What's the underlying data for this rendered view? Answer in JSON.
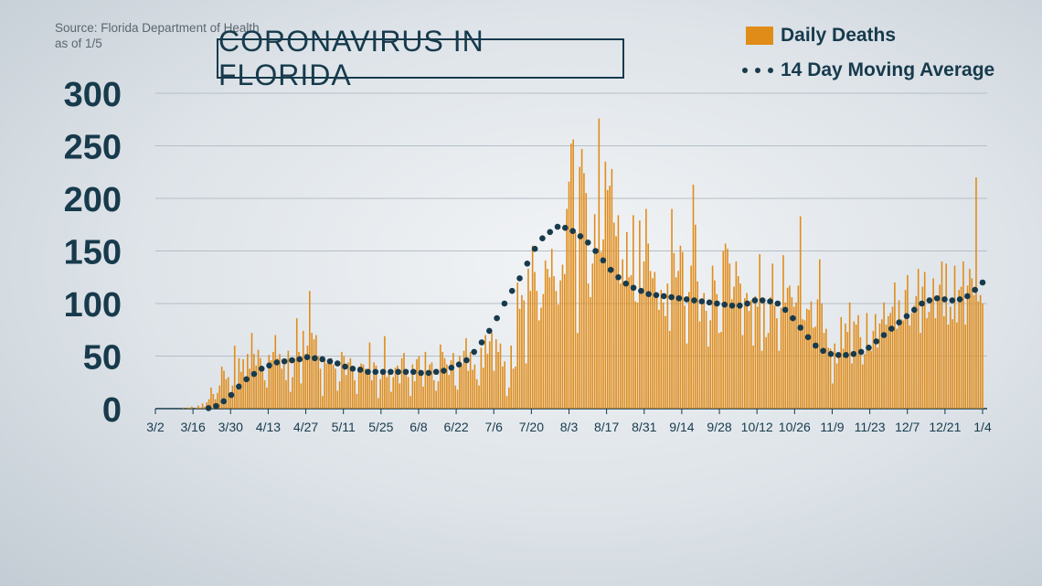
{
  "source": {
    "line1": "Source: Florida Department of Health",
    "line2": "as of 1/5"
  },
  "title": "CORONAVIRUS IN FLORIDA",
  "legend": {
    "bars": "Daily Deaths",
    "line": "14 Day Moving Average"
  },
  "colors": {
    "bars": "#e08c19",
    "line": "#173a4c",
    "grid": "#b5bec6",
    "text": "#173a4c"
  },
  "chart_data": {
    "type": "bar",
    "start_date": "3/2",
    "grid": true,
    "ylim": [
      0,
      300
    ],
    "yticks": [
      0,
      50,
      100,
      150,
      200,
      250,
      300
    ],
    "xticks": [
      {
        "label": "3/2",
        "day": 0
      },
      {
        "label": "3/16",
        "day": 14
      },
      {
        "label": "3/30",
        "day": 28
      },
      {
        "label": "4/13",
        "day": 42
      },
      {
        "label": "4/27",
        "day": 56
      },
      {
        "label": "5/11",
        "day": 70
      },
      {
        "label": "5/25",
        "day": 84
      },
      {
        "label": "6/8",
        "day": 98
      },
      {
        "label": "6/22",
        "day": 112
      },
      {
        "label": "7/6",
        "day": 126
      },
      {
        "label": "7/20",
        "day": 140
      },
      {
        "label": "8/3",
        "day": 154
      },
      {
        "label": "8/17",
        "day": 168
      },
      {
        "label": "8/31",
        "day": 182
      },
      {
        "label": "9/14",
        "day": 196
      },
      {
        "label": "9/28",
        "day": 210
      },
      {
        "label": "10/12",
        "day": 224
      },
      {
        "label": "10/26",
        "day": 238
      },
      {
        "label": "11/9",
        "day": 252
      },
      {
        "label": "11/23",
        "day": 266
      },
      {
        "label": "12/7",
        "day": 280
      },
      {
        "label": "12/21",
        "day": 294
      },
      {
        "label": "1/4",
        "day": 308
      }
    ],
    "series": [
      {
        "name": "Daily Deaths",
        "values": [
          0,
          0,
          0,
          0,
          0,
          0,
          0,
          0,
          0,
          0,
          0,
          0,
          0,
          1,
          0,
          1,
          1,
          2,
          0,
          1,
          3,
          1,
          5,
          2,
          6,
          9,
          20,
          14,
          9,
          15,
          22,
          40,
          36,
          28,
          30,
          14,
          22,
          60,
          19,
          48,
          35,
          47,
          28,
          52,
          38,
          72,
          52,
          41,
          56,
          48,
          35,
          27,
          20,
          51,
          46,
          54,
          70,
          48,
          52,
          38,
          42,
          27,
          55,
          16,
          30,
          48,
          86,
          54,
          24,
          74,
          52,
          60,
          112,
          72,
          66,
          70,
          50,
          38,
          12,
          48,
          43,
          47,
          48,
          42,
          38,
          17,
          26,
          54,
          50,
          32,
          44,
          48,
          35,
          27,
          14,
          40,
          43,
          42,
          38,
          36,
          63,
          27,
          44,
          41,
          10,
          28,
          35,
          69,
          30,
          34,
          16,
          30,
          39,
          41,
          24,
          48,
          53,
          34,
          30,
          12,
          42,
          26,
          47,
          50,
          33,
          21,
          54,
          36,
          42,
          44,
          27,
          17,
          26,
          61,
          54,
          48,
          42,
          32,
          46,
          53,
          22,
          18,
          50,
          41,
          55,
          67,
          36,
          54,
          37,
          42,
          28,
          22,
          58,
          39,
          70,
          52,
          64,
          72,
          36,
          66,
          54,
          62,
          40,
          45,
          12,
          20,
          60,
          38,
          40,
          120,
          95,
          108,
          103,
          43,
          133,
          112,
          155,
          130,
          112,
          84,
          96,
          109,
          141,
          133,
          125,
          152,
          126,
          112,
          99,
          122,
          137,
          128,
          190,
          216,
          252,
          256,
          168,
          72,
          230,
          247,
          224,
          205,
          119,
          106,
          138,
          185,
          152,
          276,
          149,
          161,
          235,
          208,
          212,
          228,
          177,
          164,
          184,
          119,
          142,
          118,
          168,
          125,
          127,
          184,
          102,
          101,
          179,
          111,
          140,
          190,
          157,
          131,
          124,
          130,
          108,
          94,
          113,
          101,
          88,
          119,
          74,
          190,
          148,
          125,
          131,
          155,
          149,
          98,
          62,
          111,
          136,
          213,
          175,
          121,
          83,
          99,
          110,
          93,
          59,
          84,
          136,
          122,
          109,
          72,
          73,
          150,
          157,
          152,
          138,
          104,
          116,
          140,
          126,
          119,
          70,
          105,
          110,
          93,
          103,
          60,
          107,
          97,
          147,
          55,
          105,
          68,
          72,
          106,
          138,
          98,
          86,
          55,
          96,
          146,
          101,
          115,
          117,
          106,
          97,
          101,
          117,
          183,
          85,
          84,
          95,
          94,
          102,
          77,
          78,
          104,
          142,
          100,
          72,
          76,
          58,
          57,
          24,
          62,
          43,
          52,
          87,
          57,
          81,
          73,
          101,
          43,
          83,
          80,
          89,
          68,
          42,
          52,
          91,
          60,
          55,
          74,
          90,
          58,
          81,
          85,
          101,
          80,
          88,
          91,
          97,
          120,
          76,
          103,
          85,
          84,
          113,
          127,
          79,
          91,
          98,
          107,
          133,
          72,
          116,
          130,
          86,
          92,
          103,
          124,
          86,
          104,
          118,
          140,
          88,
          138,
          80,
          97,
          85,
          136,
          82,
          113,
          116,
          140,
          80,
          117,
          133,
          124,
          108,
          220,
          102,
          108,
          100
        ]
      },
      {
        "name": "14 Day Moving Average",
        "values": [
          0,
          0,
          0,
          0,
          0,
          0,
          0,
          0,
          0,
          0,
          0,
          0,
          0,
          0,
          0,
          0,
          0,
          0,
          0,
          0,
          0,
          0.5,
          1,
          1.5,
          2.5,
          3.5,
          5,
          7,
          9,
          11,
          13,
          16,
          19,
          21,
          23,
          26,
          28,
          30,
          32,
          33,
          35,
          37,
          38,
          39,
          40,
          41,
          42,
          43,
          44,
          44,
          45,
          45,
          46,
          46,
          46,
          47,
          47,
          47,
          48,
          48,
          49,
          49,
          49,
          48,
          48,
          48,
          47,
          47,
          46,
          45,
          45,
          44,
          43,
          42,
          41,
          40,
          39,
          38,
          38,
          37,
          37,
          37,
          36,
          36,
          35,
          35,
          35,
          35,
          35,
          35,
          35,
          35,
          35,
          35,
          35,
          35,
          35,
          35,
          35,
          35,
          35,
          35,
          35,
          35,
          34,
          34,
          34,
          34,
          34,
          35,
          35,
          35,
          35,
          36,
          36,
          37,
          38,
          39,
          40,
          41,
          42,
          43,
          44,
          46,
          48,
          51,
          54,
          57,
          60,
          63,
          66,
          70,
          74,
          78,
          82,
          86,
          90,
          95,
          100,
          104,
          108,
          112,
          116,
          120,
          124,
          128,
          133,
          138,
          143,
          148,
          152,
          156,
          159,
          162,
          164,
          166,
          168,
          170,
          172,
          173,
          173,
          173,
          172,
          171,
          170,
          169,
          168,
          166,
          164,
          162,
          160,
          158,
          155,
          153,
          150,
          147,
          144,
          141,
          138,
          135,
          132,
          129,
          127,
          125,
          123,
          121,
          119,
          117,
          116,
          115,
          114,
          113,
          112,
          111,
          110,
          109,
          108,
          108,
          108,
          107,
          107,
          107,
          107,
          107,
          106,
          106,
          106,
          105,
          105,
          105,
          104,
          104,
          104,
          103,
          103,
          103,
          102,
          102,
          102,
          101,
          101,
          100,
          100,
          100,
          99,
          99,
          99,
          99,
          98,
          98,
          98,
          98,
          98,
          99,
          100,
          101,
          102,
          103,
          103,
          103,
          103,
          103,
          103,
          102,
          102,
          101,
          100,
          98,
          96,
          94,
          92,
          89,
          86,
          83,
          80,
          77,
          74,
          71,
          68,
          65,
          62,
          60,
          58,
          56,
          55,
          54,
          53,
          52,
          52,
          51,
          51,
          51,
          51,
          51,
          51,
          51,
          52,
          52,
          53,
          54,
          55,
          56,
          58,
          60,
          62,
          64,
          66,
          68,
          70,
          72,
          74,
          76,
          78,
          80,
          82,
          84,
          86,
          88,
          90,
          92,
          94,
          96,
          98,
          100,
          101,
          102,
          103,
          104,
          104,
          105,
          105,
          105,
          104,
          104,
          104,
          103,
          103,
          103,
          104,
          105,
          106,
          107,
          109,
          111,
          113,
          116,
          118,
          120
        ]
      }
    ]
  }
}
